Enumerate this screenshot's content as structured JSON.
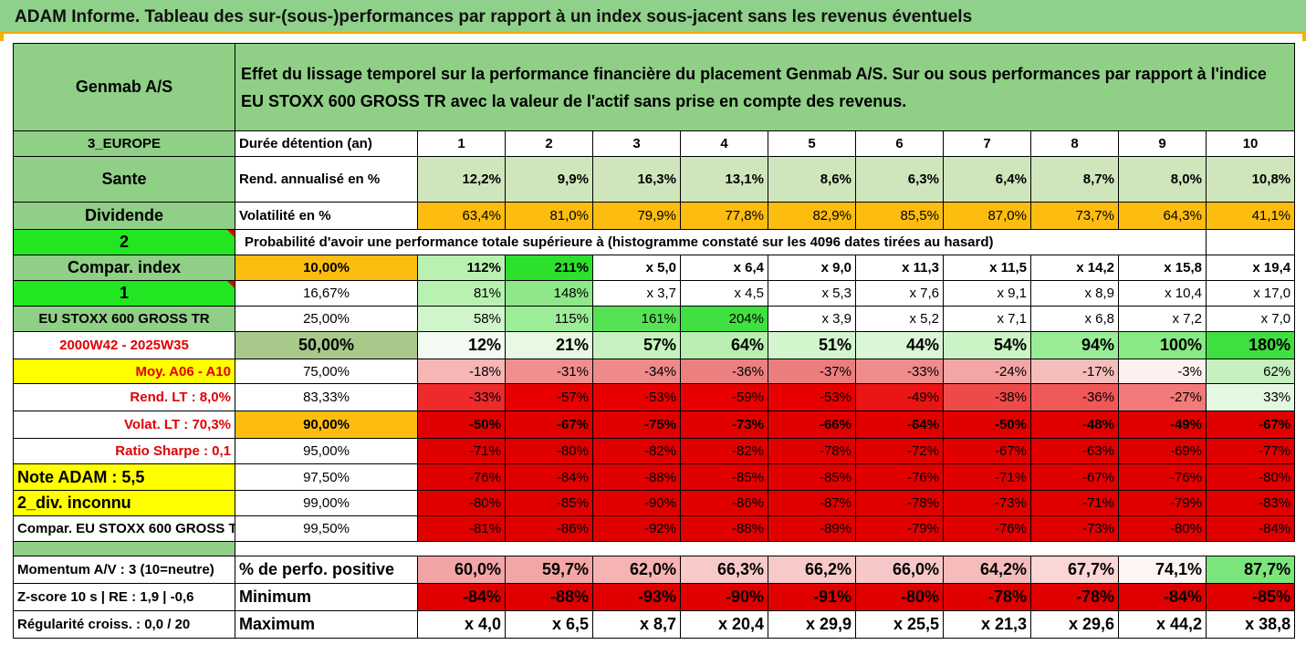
{
  "title": "ADAM Informe. Tableau des sur-(sous-)performances par rapport à un index sous-jacent sans les revenus éventuels",
  "header": {
    "company": "Genmab A/S",
    "description": "Effet du lissage temporel sur la performance financière du placement Genmab A/S. Sur ou sous performances par rapport à l'indice EU STOXX 600 GROSS TR avec la valeur de l'actif sans prise en compte des revenus."
  },
  "left": {
    "region": "3_EUROPE",
    "sector": "Sante",
    "dividend": "Dividende",
    "two": "2",
    "compar_index": "Compar. index",
    "one": "1",
    "index_name": "EU STOXX 600 GROSS TR",
    "period": "2000W42 - 2025W35",
    "moy": "Moy. A06 - A10",
    "rend_lt": "Rend. LT :    8,0%",
    "volat_lt": "Volat. LT :    70,3%",
    "sharpe": "Ratio Sharpe :    0,1",
    "note": "Note ADAM : 5,5",
    "div": "2_div. inconnu",
    "compar": "Compar. EU STOXX 600 GROSS TR",
    "momentum": "Momentum A/V : 3 (10=neutre)",
    "zscore": "Z-score 10 s  |  RE : 1,9  |  -0,6",
    "regularite": "Régularité croiss. : 0,0 / 20"
  },
  "labels": {
    "duree": "Durée détention (an)",
    "rend": "Rend. annualisé en %",
    "volat": "Volatilité en %",
    "proba": "Probabilité d'avoir une performance totale supérieure à (histogramme constaté sur les 4096 dates tirées au hasard)",
    "perfo_pos": "% de perfo. positive",
    "minimum": "Minimum",
    "maximum": "Maximum"
  },
  "years": [
    "1",
    "2",
    "3",
    "4",
    "5",
    "6",
    "7",
    "8",
    "9",
    "10"
  ],
  "rend": [
    "12,2%",
    "9,9%",
    "16,3%",
    "13,1%",
    "8,6%",
    "6,3%",
    "6,4%",
    "8,7%",
    "8,0%",
    "10,8%"
  ],
  "volat": [
    "63,4%",
    "81,0%",
    "79,9%",
    "77,8%",
    "82,9%",
    "85,5%",
    "87,0%",
    "73,7%",
    "64,3%",
    "41,1%"
  ],
  "quantiles": [
    {
      "q": "10,00%",
      "values": [
        "112%",
        "211%",
        "x 5,0",
        "x 6,4",
        "x 9,0",
        "x 11,3",
        "x 11,5",
        "x 14,2",
        "x 15,8",
        "x 19,4"
      ]
    },
    {
      "q": "16,67%",
      "values": [
        "81%",
        "148%",
        "x 3,7",
        "x 4,5",
        "x 5,3",
        "x 7,6",
        "x 9,1",
        "x 8,9",
        "x 10,4",
        "x 17,0"
      ]
    },
    {
      "q": "25,00%",
      "values": [
        "58%",
        "115%",
        "161%",
        "204%",
        "x 3,9",
        "x 5,2",
        "x 7,1",
        "x 6,8",
        "x 7,2",
        "x 7,0"
      ]
    },
    {
      "q": "50,00%",
      "values": [
        "12%",
        "21%",
        "57%",
        "64%",
        "51%",
        "44%",
        "54%",
        "94%",
        "100%",
        "180%"
      ]
    },
    {
      "q": "75,00%",
      "values": [
        "-18%",
        "-31%",
        "-34%",
        "-36%",
        "-37%",
        "-33%",
        "-24%",
        "-17%",
        "-3%",
        "62%"
      ]
    },
    {
      "q": "83,33%",
      "values": [
        "-33%",
        "-57%",
        "-53%",
        "-59%",
        "-53%",
        "-49%",
        "-38%",
        "-36%",
        "-27%",
        "33%"
      ]
    },
    {
      "q": "90,00%",
      "values": [
        "-50%",
        "-67%",
        "-75%",
        "-73%",
        "-66%",
        "-64%",
        "-50%",
        "-48%",
        "-49%",
        "-67%"
      ]
    },
    {
      "q": "95,00%",
      "values": [
        "-71%",
        "-80%",
        "-82%",
        "-82%",
        "-78%",
        "-72%",
        "-67%",
        "-63%",
        "-69%",
        "-77%"
      ]
    },
    {
      "q": "97,50%",
      "values": [
        "-76%",
        "-84%",
        "-88%",
        "-85%",
        "-85%",
        "-76%",
        "-71%",
        "-67%",
        "-76%",
        "-80%"
      ]
    },
    {
      "q": "99,00%",
      "values": [
        "-80%",
        "-85%",
        "-90%",
        "-86%",
        "-87%",
        "-78%",
        "-73%",
        "-71%",
        "-79%",
        "-83%"
      ]
    },
    {
      "q": "99,50%",
      "values": [
        "-81%",
        "-86%",
        "-92%",
        "-88%",
        "-89%",
        "-79%",
        "-76%",
        "-73%",
        "-80%",
        "-84%"
      ]
    }
  ],
  "perfo_pos": [
    "60,0%",
    "59,7%",
    "62,0%",
    "66,3%",
    "66,2%",
    "66,0%",
    "64,2%",
    "67,7%",
    "74,1%",
    "87,7%"
  ],
  "minimum": [
    "-84%",
    "-88%",
    "-93%",
    "-90%",
    "-91%",
    "-80%",
    "-78%",
    "-78%",
    "-84%",
    "-85%"
  ],
  "maximum": [
    "x 4,0",
    "x 6,5",
    "x 8,7",
    "x 20,4",
    "x 29,9",
    "x 25,5",
    "x 21,3",
    "x 29,6",
    "x 44,2",
    "x 38,8"
  ],
  "colors": {
    "rows_q": [
      [
        "#b8f2b0",
        "#2ee02e",
        "#ffffff",
        "#ffffff",
        "#ffffff",
        "#ffffff",
        "#ffffff",
        "#ffffff",
        "#ffffff",
        "#ffffff"
      ],
      [
        "#b8f2b0",
        "#8ee88a",
        "#ffffff",
        "#ffffff",
        "#ffffff",
        "#ffffff",
        "#ffffff",
        "#ffffff",
        "#ffffff",
        "#ffffff"
      ],
      [
        "#d2f6cc",
        "#9ced98",
        "#55e355",
        "#3fe03f",
        "#ffffff",
        "#ffffff",
        "#ffffff",
        "#ffffff",
        "#ffffff",
        "#ffffff"
      ],
      [
        "#f4fbf2",
        "#e7f8e3",
        "#c6f2c0",
        "#b9f0b2",
        "#d3f5ce",
        "#daf6d6",
        "#cbf3c6",
        "#9bec96",
        "#88ea82",
        "#40df40"
      ],
      [
        "#f6b6b6",
        "#f08f8f",
        "#ee8a8a",
        "#ec8080",
        "#eb7d7d",
        "#ef8c8c",
        "#f3a6a6",
        "#f6bdbd",
        "#fdf0f0",
        "#c6f0c0"
      ],
      [
        "#ee2a2a",
        "#e80000",
        "#e80000",
        "#e80000",
        "#e80000",
        "#ea1414",
        "#ef4a4a",
        "#f05858",
        "#f27a7a",
        "#e4f7e0"
      ],
      [
        "#e00000",
        "#e00000",
        "#e00000",
        "#e00000",
        "#e00000",
        "#e00000",
        "#e00000",
        "#e00000",
        "#e00000",
        "#e00000"
      ],
      [
        "#e00000",
        "#e00000",
        "#e00000",
        "#e00000",
        "#e00000",
        "#e00000",
        "#e00000",
        "#e00000",
        "#e00000",
        "#e00000"
      ],
      [
        "#e00000",
        "#e00000",
        "#e00000",
        "#e00000",
        "#e00000",
        "#e00000",
        "#e00000",
        "#e00000",
        "#e00000",
        "#e00000"
      ],
      [
        "#e00000",
        "#e00000",
        "#e00000",
        "#e00000",
        "#e00000",
        "#e00000",
        "#e00000",
        "#e00000",
        "#e00000",
        "#e00000"
      ],
      [
        "#e00000",
        "#e00000",
        "#e00000",
        "#e00000",
        "#e00000",
        "#e00000",
        "#e00000",
        "#e00000",
        "#e00000",
        "#e00000"
      ]
    ],
    "perfo_pos": [
      "#f3a4a4",
      "#f3a6a6",
      "#f5b3b3",
      "#f8caca",
      "#f8c9c9",
      "#f8c8c8",
      "#f6bcbc",
      "#fbd6d6",
      "#fdf4f4",
      "#7be57b"
    ],
    "minimum_bg": "#e00000"
  }
}
